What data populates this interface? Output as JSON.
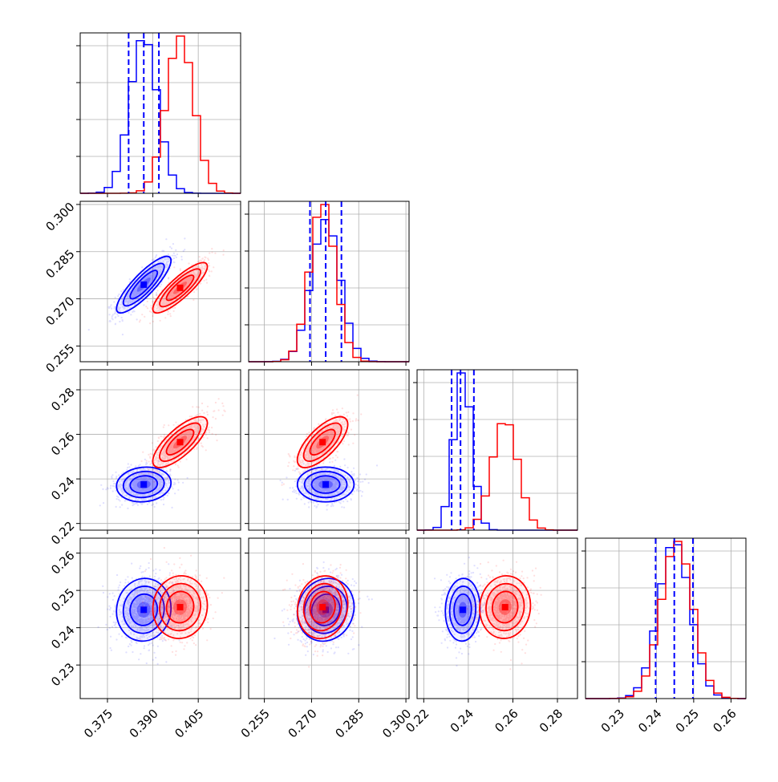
{
  "colors": {
    "series_a": "#0000ff",
    "series_b": "#ff0000",
    "grid": "#b0b0b0",
    "frame": "#000000"
  },
  "chart_data": {
    "type": "corner",
    "grid": true,
    "params": [
      {
        "range": [
          0.366,
          0.419
        ],
        "ticks": [
          "0.375",
          "0.390",
          "0.405"
        ],
        "tick_values": [
          0.375,
          0.39,
          0.405
        ]
      },
      {
        "range": [
          0.25,
          0.301
        ],
        "ticks": [
          "0.255",
          "0.270",
          "0.285",
          "0.300"
        ],
        "tick_values": [
          0.255,
          0.27,
          0.285,
          0.3
        ]
      },
      {
        "range": [
          0.217,
          0.289
        ],
        "ticks": [
          "0.22",
          "0.24",
          "0.26",
          "0.28"
        ],
        "tick_values": [
          0.22,
          0.24,
          0.26,
          0.28
        ]
      },
      {
        "range": [
          0.221,
          0.264
        ],
        "ticks": [
          "0.23",
          "0.24",
          "0.25",
          "0.26"
        ],
        "tick_values": [
          0.23,
          0.24,
          0.25,
          0.26
        ]
      }
    ],
    "series": [
      {
        "color_key": "series_a",
        "means": [
          0.387,
          0.2745,
          0.2375,
          0.2448
        ],
        "sds": [
          0.0045,
          0.0045,
          0.0039,
          0.0042
        ],
        "corr": [
          [
            1,
            0.85,
            0.1,
            0.05
          ],
          [
            0.85,
            1,
            0.0,
            0.1
          ],
          [
            0.1,
            0.0,
            1,
            0.05
          ],
          [
            0.05,
            0.1,
            0.05,
            1
          ]
        ],
        "quantiles": [
          [
            0.382,
            0.387,
            0.392
          ],
          [
            0.2695,
            0.2745,
            0.2795
          ],
          [
            0.2325,
            0.2365,
            0.2425
          ],
          [
            0.2398,
            0.2448,
            0.2498
          ]
        ]
      },
      {
        "color_key": "series_b",
        "means": [
          0.399,
          0.2735,
          0.2565,
          0.2455
        ],
        "sds": [
          0.0045,
          0.004,
          0.0057,
          0.0042
        ],
        "corr": [
          [
            1,
            0.85,
            0.75,
            0.05
          ],
          [
            0.85,
            1,
            0.7,
            0.1
          ],
          [
            0.75,
            0.7,
            1,
            0.05
          ],
          [
            0.05,
            0.1,
            0.05,
            1
          ]
        ],
        "quantiles": []
      }
    ]
  }
}
